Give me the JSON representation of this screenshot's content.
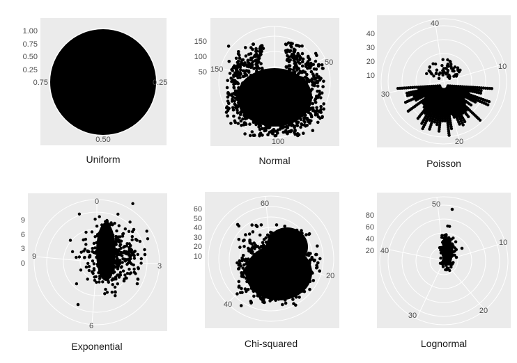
{
  "colors": {
    "panel_bg": "#ebebeb",
    "grid": "#ffffff",
    "points": "#000000",
    "text": "#4d4d4d"
  },
  "chart_data": [
    {
      "type": "scatter",
      "coord": "polar",
      "title": "Uniform",
      "theta_ticks": [
        "0.75",
        "0.25",
        "0.50"
      ],
      "r_ticks": [
        "0.25",
        "0.50",
        "0.75",
        "1.00"
      ],
      "ylim": [
        0,
        1
      ],
      "description_of_points": "uniform x on [0,1], uniform r on [0,1]; points fill the whole disc"
    },
    {
      "type": "scatter",
      "coord": "polar",
      "title": "Normal",
      "theta_ticks": [
        "150",
        "50",
        "100"
      ],
      "r_ticks": [
        "50",
        "100",
        "150"
      ],
      "ylim": [
        0,
        180
      ]
    },
    {
      "type": "scatter",
      "coord": "polar",
      "title": "Poisson",
      "theta_ticks": [
        "40",
        "10",
        "30",
        "20"
      ],
      "r_ticks": [
        "10",
        "20",
        "30",
        "40"
      ],
      "ylim": [
        0,
        45
      ]
    },
    {
      "type": "scatter",
      "coord": "polar",
      "title": "Exponential",
      "theta_ticks": [
        "0",
        "3",
        "6",
        "9"
      ],
      "r_ticks": [
        "0",
        "3",
        "6",
        "9"
      ],
      "ylim": [
        0,
        11
      ]
    },
    {
      "type": "scatter",
      "coord": "polar",
      "title": "Chi-squared",
      "theta_ticks": [
        "60",
        "20",
        "40"
      ],
      "r_ticks": [
        "10",
        "20",
        "30",
        "40",
        "50",
        "60"
      ],
      "ylim": [
        0,
        65
      ]
    },
    {
      "type": "scatter",
      "coord": "polar",
      "title": "Lognormal",
      "theta_ticks": [
        "50",
        "10",
        "20",
        "30",
        "40"
      ],
      "r_ticks": [
        "20",
        "40",
        "60",
        "80"
      ],
      "ylim": [
        0,
        95
      ]
    }
  ]
}
